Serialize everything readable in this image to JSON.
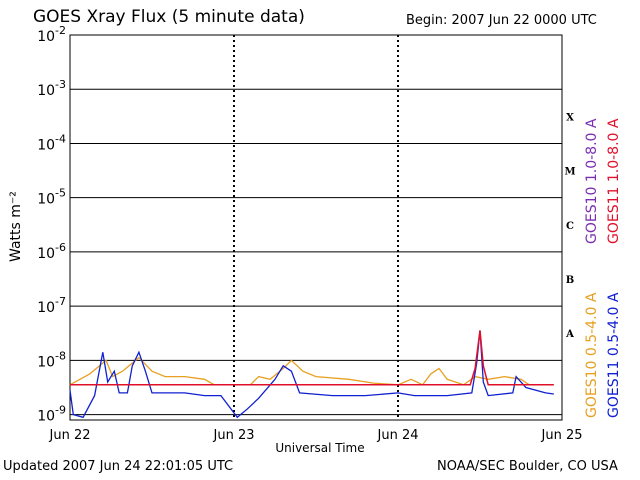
{
  "header": {
    "title": "GOES Xray Flux (5 minute data)",
    "begin": "Begin:  2007 Jun 22 0000 UTC"
  },
  "footer": {
    "updated": "Updated 2007 Jun 24 22:01:05 UTC",
    "credit": "NOAA/SEC Boulder, CO USA"
  },
  "chart_data": {
    "type": "line",
    "xlabel": "Universal Time",
    "ylabel": "Watts m⁻²",
    "x_unit": "days since 2007 Jun 22 0000 UTC",
    "xlim": [
      0,
      3
    ],
    "ylim_log10": [
      -9.1,
      -2
    ],
    "y_scale": "log",
    "y_ticks": [
      {
        "base": "10",
        "exp": "-2",
        "log10": -2
      },
      {
        "base": "10",
        "exp": "-3",
        "log10": -3
      },
      {
        "base": "10",
        "exp": "-4",
        "log10": -4
      },
      {
        "base": "10",
        "exp": "-5",
        "log10": -5
      },
      {
        "base": "10",
        "exp": "-6",
        "log10": -6
      },
      {
        "base": "10",
        "exp": "-7",
        "log10": -7
      },
      {
        "base": "10",
        "exp": "-8",
        "log10": -8
      },
      {
        "base": "10",
        "exp": "-9",
        "log10": -9
      }
    ],
    "x_ticks": [
      {
        "label": "Jun 22",
        "value": 0
      },
      {
        "label": "Jun 23",
        "value": 1
      },
      {
        "label": "Jun 24",
        "value": 2
      },
      {
        "label": "Jun 25",
        "value": 3
      }
    ],
    "flare_classes": [
      {
        "label": "X",
        "log10": -3.5
      },
      {
        "label": "M",
        "log10": -4.5
      },
      {
        "label": "C",
        "log10": -5.5
      },
      {
        "label": "B",
        "log10": -6.5
      },
      {
        "label": "A",
        "log10": -7.5
      }
    ],
    "grid": true,
    "legend_position": "right",
    "series": [
      {
        "name": "GOES10 0.5-4.0 A",
        "color": "#e8a020",
        "points": [
          [
            0,
            -8.45
          ],
          [
            0.12,
            -8.25
          ],
          [
            0.22,
            -8.0
          ],
          [
            0.26,
            -8.3
          ],
          [
            0.32,
            -8.2
          ],
          [
            0.42,
            -7.95
          ],
          [
            0.5,
            -8.2
          ],
          [
            0.58,
            -8.3
          ],
          [
            0.7,
            -8.3
          ],
          [
            0.82,
            -8.35
          ],
          [
            0.88,
            -8.45
          ],
          [
            1.0,
            -8.45
          ],
          [
            1.1,
            -8.45
          ],
          [
            1.15,
            -8.3
          ],
          [
            1.22,
            -8.35
          ],
          [
            1.3,
            -8.15
          ],
          [
            1.35,
            -8.0
          ],
          [
            1.42,
            -8.2
          ],
          [
            1.5,
            -8.3
          ],
          [
            1.7,
            -8.35
          ],
          [
            1.85,
            -8.42
          ],
          [
            2.0,
            -8.45
          ],
          [
            2.08,
            -8.35
          ],
          [
            2.15,
            -8.45
          ],
          [
            2.2,
            -8.25
          ],
          [
            2.25,
            -8.15
          ],
          [
            2.3,
            -8.35
          ],
          [
            2.4,
            -8.45
          ],
          [
            2.47,
            -8.3
          ],
          [
            2.55,
            -8.35
          ],
          [
            2.65,
            -8.3
          ],
          [
            2.75,
            -8.35
          ],
          [
            2.8,
            -8.45
          ],
          [
            2.9,
            -8.45
          ],
          [
            2.95,
            -8.45
          ]
        ]
      },
      {
        "name": "GOES11 0.5-4.0 A",
        "color": "#1020d0",
        "points": [
          [
            0,
            -8.55
          ],
          [
            0.02,
            -9.0
          ],
          [
            0.08,
            -9.05
          ],
          [
            0.15,
            -8.65
          ],
          [
            0.2,
            -7.85
          ],
          [
            0.23,
            -8.4
          ],
          [
            0.27,
            -8.2
          ],
          [
            0.3,
            -8.6
          ],
          [
            0.35,
            -8.6
          ],
          [
            0.38,
            -8.1
          ],
          [
            0.42,
            -7.85
          ],
          [
            0.46,
            -8.2
          ],
          [
            0.5,
            -8.6
          ],
          [
            0.7,
            -8.6
          ],
          [
            0.82,
            -8.65
          ],
          [
            0.92,
            -8.65
          ],
          [
            1.02,
            -9.05
          ],
          [
            1.08,
            -8.9
          ],
          [
            1.15,
            -8.7
          ],
          [
            1.25,
            -8.35
          ],
          [
            1.3,
            -8.1
          ],
          [
            1.35,
            -8.2
          ],
          [
            1.4,
            -8.6
          ],
          [
            1.6,
            -8.65
          ],
          [
            1.8,
            -8.65
          ],
          [
            2.0,
            -8.6
          ],
          [
            2.1,
            -8.65
          ],
          [
            2.3,
            -8.65
          ],
          [
            2.45,
            -8.6
          ],
          [
            2.48,
            -8.05
          ],
          [
            2.5,
            -7.45
          ],
          [
            2.52,
            -8.4
          ],
          [
            2.55,
            -8.65
          ],
          [
            2.7,
            -8.6
          ],
          [
            2.72,
            -8.3
          ],
          [
            2.78,
            -8.5
          ],
          [
            2.9,
            -8.6
          ],
          [
            2.95,
            -8.62
          ]
        ]
      },
      {
        "name": "GOES10 1.0-8.0 A",
        "color": "#7a2fb0",
        "points": []
      },
      {
        "name": "GOES11 1.0-8.0 A",
        "color": "#e0102a",
        "points": [
          [
            0,
            -8.45
          ],
          [
            1.0,
            -8.45
          ],
          [
            2.0,
            -8.45
          ],
          [
            2.44,
            -8.45
          ],
          [
            2.47,
            -8.15
          ],
          [
            2.5,
            -7.45
          ],
          [
            2.52,
            -8.1
          ],
          [
            2.55,
            -8.45
          ],
          [
            2.95,
            -8.45
          ]
        ]
      }
    ]
  }
}
